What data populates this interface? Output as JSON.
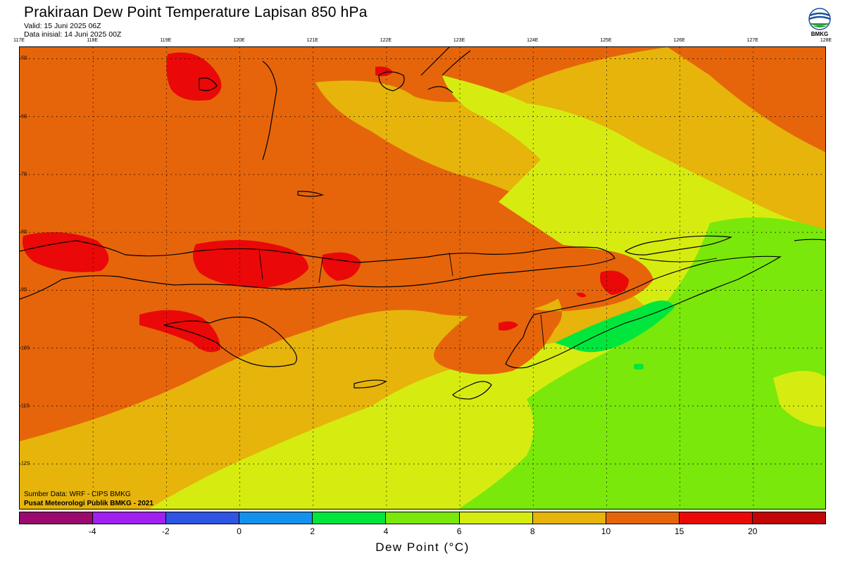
{
  "header": {
    "title": "Prakiraan Dew Point Temperature Lapisan 850 hPa",
    "valid": "Valid: 15 Juni 2025 06Z",
    "init": "Data inisial: 14 Juni 2025 00Z"
  },
  "logo": {
    "text": "BMKG",
    "icon": "bmkg-logo-icon"
  },
  "map": {
    "lon_labels": [
      "117E",
      "118E",
      "119E",
      "120E",
      "121E",
      "122E",
      "123E",
      "124E",
      "125E",
      "126E",
      "127E",
      "128E"
    ],
    "lat_labels": [
      "5S",
      "6S",
      "7S",
      "8S",
      "9S",
      "10S",
      "11S",
      "12S"
    ],
    "extent": {
      "lon": [
        117,
        128
      ],
      "lat": [
        -4.8,
        -12.8
      ]
    },
    "credits": [
      "Sumber Data: WRF - CIPS BMKG",
      "Pusat Meteorologi Publik BMKG - 2021"
    ]
  },
  "colorbar": {
    "colors": [
      "#9b0a6e",
      "#a020ef",
      "#2f55e3",
      "#1491ed",
      "#00e63c",
      "#7ae80a",
      "#d6ec10",
      "#e6b40b",
      "#e6650a",
      "#ea0808",
      "#c20505"
    ],
    "labels": [
      "-4",
      "-2",
      "0",
      "2",
      "4",
      "6",
      "8",
      "10",
      "15",
      "20"
    ],
    "title": "Dew Point (°C)"
  }
}
